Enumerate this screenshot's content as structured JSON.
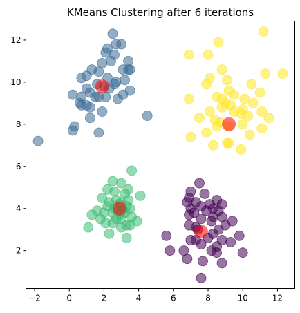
{
  "chart_data": {
    "type": "scatter",
    "title": "KMeans Clustering after 6 iterations",
    "xlabel": "",
    "ylabel": "",
    "xlim": [
      -2.5,
      13.0
    ],
    "ylim": [
      0.2,
      12.9
    ],
    "xticks": [
      -2,
      0,
      2,
      4,
      6,
      8,
      10,
      12
    ],
    "yticks": [
      2,
      4,
      6,
      8,
      10,
      12
    ],
    "grid": false,
    "legend": "none",
    "point_alpha": 0.55,
    "centroid_alpha": 0.55,
    "clusters": [
      {
        "color": "#3b6c93",
        "points": [
          [
            2.5,
            12.3
          ],
          [
            2.7,
            11.8
          ],
          [
            2.2,
            11.6
          ],
          [
            3.0,
            11.8
          ],
          [
            2.1,
            11.4
          ],
          [
            2.6,
            11.3
          ],
          [
            2.4,
            11.0
          ],
          [
            3.4,
            11.0
          ],
          [
            1.9,
            10.9
          ],
          [
            1.3,
            10.6
          ],
          [
            1.7,
            10.5
          ],
          [
            3.1,
            10.6
          ],
          [
            3.4,
            10.6
          ],
          [
            3.5,
            10.6
          ],
          [
            1.0,
            10.3
          ],
          [
            0.7,
            10.2
          ],
          [
            2.2,
            10.2
          ],
          [
            2.7,
            10.0
          ],
          [
            3.2,
            10.1
          ],
          [
            1.6,
            9.9
          ],
          [
            2.6,
            9.9
          ],
          [
            2.0,
            9.8
          ],
          [
            2.3,
            9.7
          ],
          [
            1.0,
            9.7
          ],
          [
            3.5,
            9.6
          ],
          [
            1.2,
            9.5
          ],
          [
            0.2,
            9.4
          ],
          [
            0.7,
            9.3
          ],
          [
            1.5,
            9.3
          ],
          [
            2.1,
            9.3
          ],
          [
            1.7,
            9.3
          ],
          [
            3.1,
            9.4
          ],
          [
            2.8,
            9.2
          ],
          [
            0.6,
            9.0
          ],
          [
            1.0,
            8.9
          ],
          [
            1.2,
            8.8
          ],
          [
            0.7,
            8.9
          ],
          [
            1.9,
            8.6
          ],
          [
            4.5,
            8.4
          ],
          [
            1.2,
            8.3
          ],
          [
            0.3,
            7.9
          ],
          [
            0.2,
            7.7
          ],
          [
            1.7,
            7.6
          ],
          [
            -1.8,
            7.2
          ]
        ]
      },
      {
        "color": "#fde725",
        "points": [
          [
            11.2,
            12.4
          ],
          [
            8.6,
            11.9
          ],
          [
            6.9,
            11.3
          ],
          [
            8.0,
            11.3
          ],
          [
            8.8,
            10.6
          ],
          [
            12.3,
            10.4
          ],
          [
            11.3,
            10.4
          ],
          [
            8.1,
            10.2
          ],
          [
            9.1,
            10.1
          ],
          [
            10.5,
            9.9
          ],
          [
            7.9,
            9.9
          ],
          [
            9.2,
            9.6
          ],
          [
            11.0,
            9.5
          ],
          [
            9.5,
            9.4
          ],
          [
            8.5,
            9.3
          ],
          [
            8.8,
            9.2
          ],
          [
            10.1,
            9.2
          ],
          [
            6.9,
            9.2
          ],
          [
            9.0,
            9.0
          ],
          [
            10.6,
            9.0
          ],
          [
            9.3,
            8.9
          ],
          [
            8.8,
            8.8
          ],
          [
            10.0,
            8.7
          ],
          [
            9.5,
            8.6
          ],
          [
            8.1,
            8.6
          ],
          [
            11.1,
            8.6
          ],
          [
            9.9,
            8.5
          ],
          [
            10.3,
            8.4
          ],
          [
            7.5,
            8.3
          ],
          [
            8.4,
            8.2
          ],
          [
            8.7,
            8.1
          ],
          [
            11.5,
            8.3
          ],
          [
            10.0,
            8.0
          ],
          [
            8.5,
            7.9
          ],
          [
            9.2,
            7.9
          ],
          [
            11.1,
            7.8
          ],
          [
            7.9,
            7.6
          ],
          [
            10.4,
            7.5
          ],
          [
            7.0,
            7.4
          ],
          [
            9.2,
            7.1
          ],
          [
            8.3,
            7.0
          ],
          [
            9.9,
            6.8
          ],
          [
            9.1,
            7.1
          ]
        ]
      },
      {
        "color": "#3dbc74",
        "points": [
          [
            3.6,
            5.8
          ],
          [
            2.5,
            5.3
          ],
          [
            3.0,
            5.2
          ],
          [
            2.2,
            4.9
          ],
          [
            3.4,
            4.9
          ],
          [
            2.6,
            4.8
          ],
          [
            3.2,
            4.7
          ],
          [
            4.1,
            4.6
          ],
          [
            1.9,
            4.5
          ],
          [
            2.7,
            4.4
          ],
          [
            3.4,
            4.4
          ],
          [
            2.3,
            4.3
          ],
          [
            3.0,
            4.3
          ],
          [
            2.9,
            4.2
          ],
          [
            2.2,
            4.1
          ],
          [
            3.3,
            4.1
          ],
          [
            2.6,
            4.0
          ],
          [
            3.5,
            4.0
          ],
          [
            3.1,
            3.9
          ],
          [
            2.8,
            3.9
          ],
          [
            1.6,
            3.9
          ],
          [
            2.5,
            3.8
          ],
          [
            2.0,
            3.8
          ],
          [
            3.2,
            3.8
          ],
          [
            2.9,
            3.7
          ],
          [
            1.3,
            3.7
          ],
          [
            3.6,
            3.6
          ],
          [
            2.7,
            3.5
          ],
          [
            1.8,
            3.5
          ],
          [
            3.0,
            3.5
          ],
          [
            3.9,
            3.4
          ],
          [
            2.5,
            3.3
          ],
          [
            2.1,
            3.3
          ],
          [
            3.3,
            3.2
          ],
          [
            3.5,
            3.2
          ],
          [
            3.0,
            3.1
          ],
          [
            1.1,
            3.1
          ],
          [
            2.3,
            2.8
          ],
          [
            3.3,
            2.6
          ]
        ]
      },
      {
        "color": "#440154",
        "points": [
          [
            7.5,
            5.2
          ],
          [
            7.0,
            4.8
          ],
          [
            7.8,
            4.7
          ],
          [
            6.9,
            4.5
          ],
          [
            8.5,
            4.4
          ],
          [
            7.3,
            4.3
          ],
          [
            6.8,
            4.3
          ],
          [
            8.1,
            4.2
          ],
          [
            7.6,
            4.1
          ],
          [
            8.8,
            4.2
          ],
          [
            8.3,
            4.0
          ],
          [
            7.0,
            4.0
          ],
          [
            7.9,
            3.9
          ],
          [
            8.6,
            3.9
          ],
          [
            7.2,
            3.8
          ],
          [
            6.9,
            3.7
          ],
          [
            8.3,
            3.6
          ],
          [
            7.6,
            3.5
          ],
          [
            8.8,
            3.6
          ],
          [
            8.2,
            3.4
          ],
          [
            6.9,
            3.2
          ],
          [
            7.3,
            3.1
          ],
          [
            8.6,
            3.0
          ],
          [
            9.4,
            3.4
          ],
          [
            9.0,
            3.2
          ],
          [
            7.4,
            3.0
          ],
          [
            8.3,
            2.8
          ],
          [
            8.0,
            2.6
          ],
          [
            5.6,
            2.7
          ],
          [
            9.8,
            2.7
          ],
          [
            7.0,
            2.5
          ],
          [
            8.8,
            2.5
          ],
          [
            7.3,
            2.5
          ],
          [
            7.6,
            2.3
          ],
          [
            9.3,
            2.4
          ],
          [
            8.5,
            2.2
          ],
          [
            5.8,
            2.0
          ],
          [
            6.6,
            2.0
          ],
          [
            8.5,
            1.9
          ],
          [
            8.2,
            2.0
          ],
          [
            10.0,
            1.9
          ],
          [
            6.8,
            1.6
          ],
          [
            7.7,
            1.5
          ],
          [
            8.8,
            1.4
          ],
          [
            7.6,
            0.7
          ]
        ]
      }
    ],
    "centroids": {
      "color": "#ff0000",
      "points": [
        [
          1.9,
          9.8
        ],
        [
          9.2,
          8.0
        ],
        [
          2.9,
          4.0
        ],
        [
          7.6,
          2.9
        ]
      ]
    }
  }
}
